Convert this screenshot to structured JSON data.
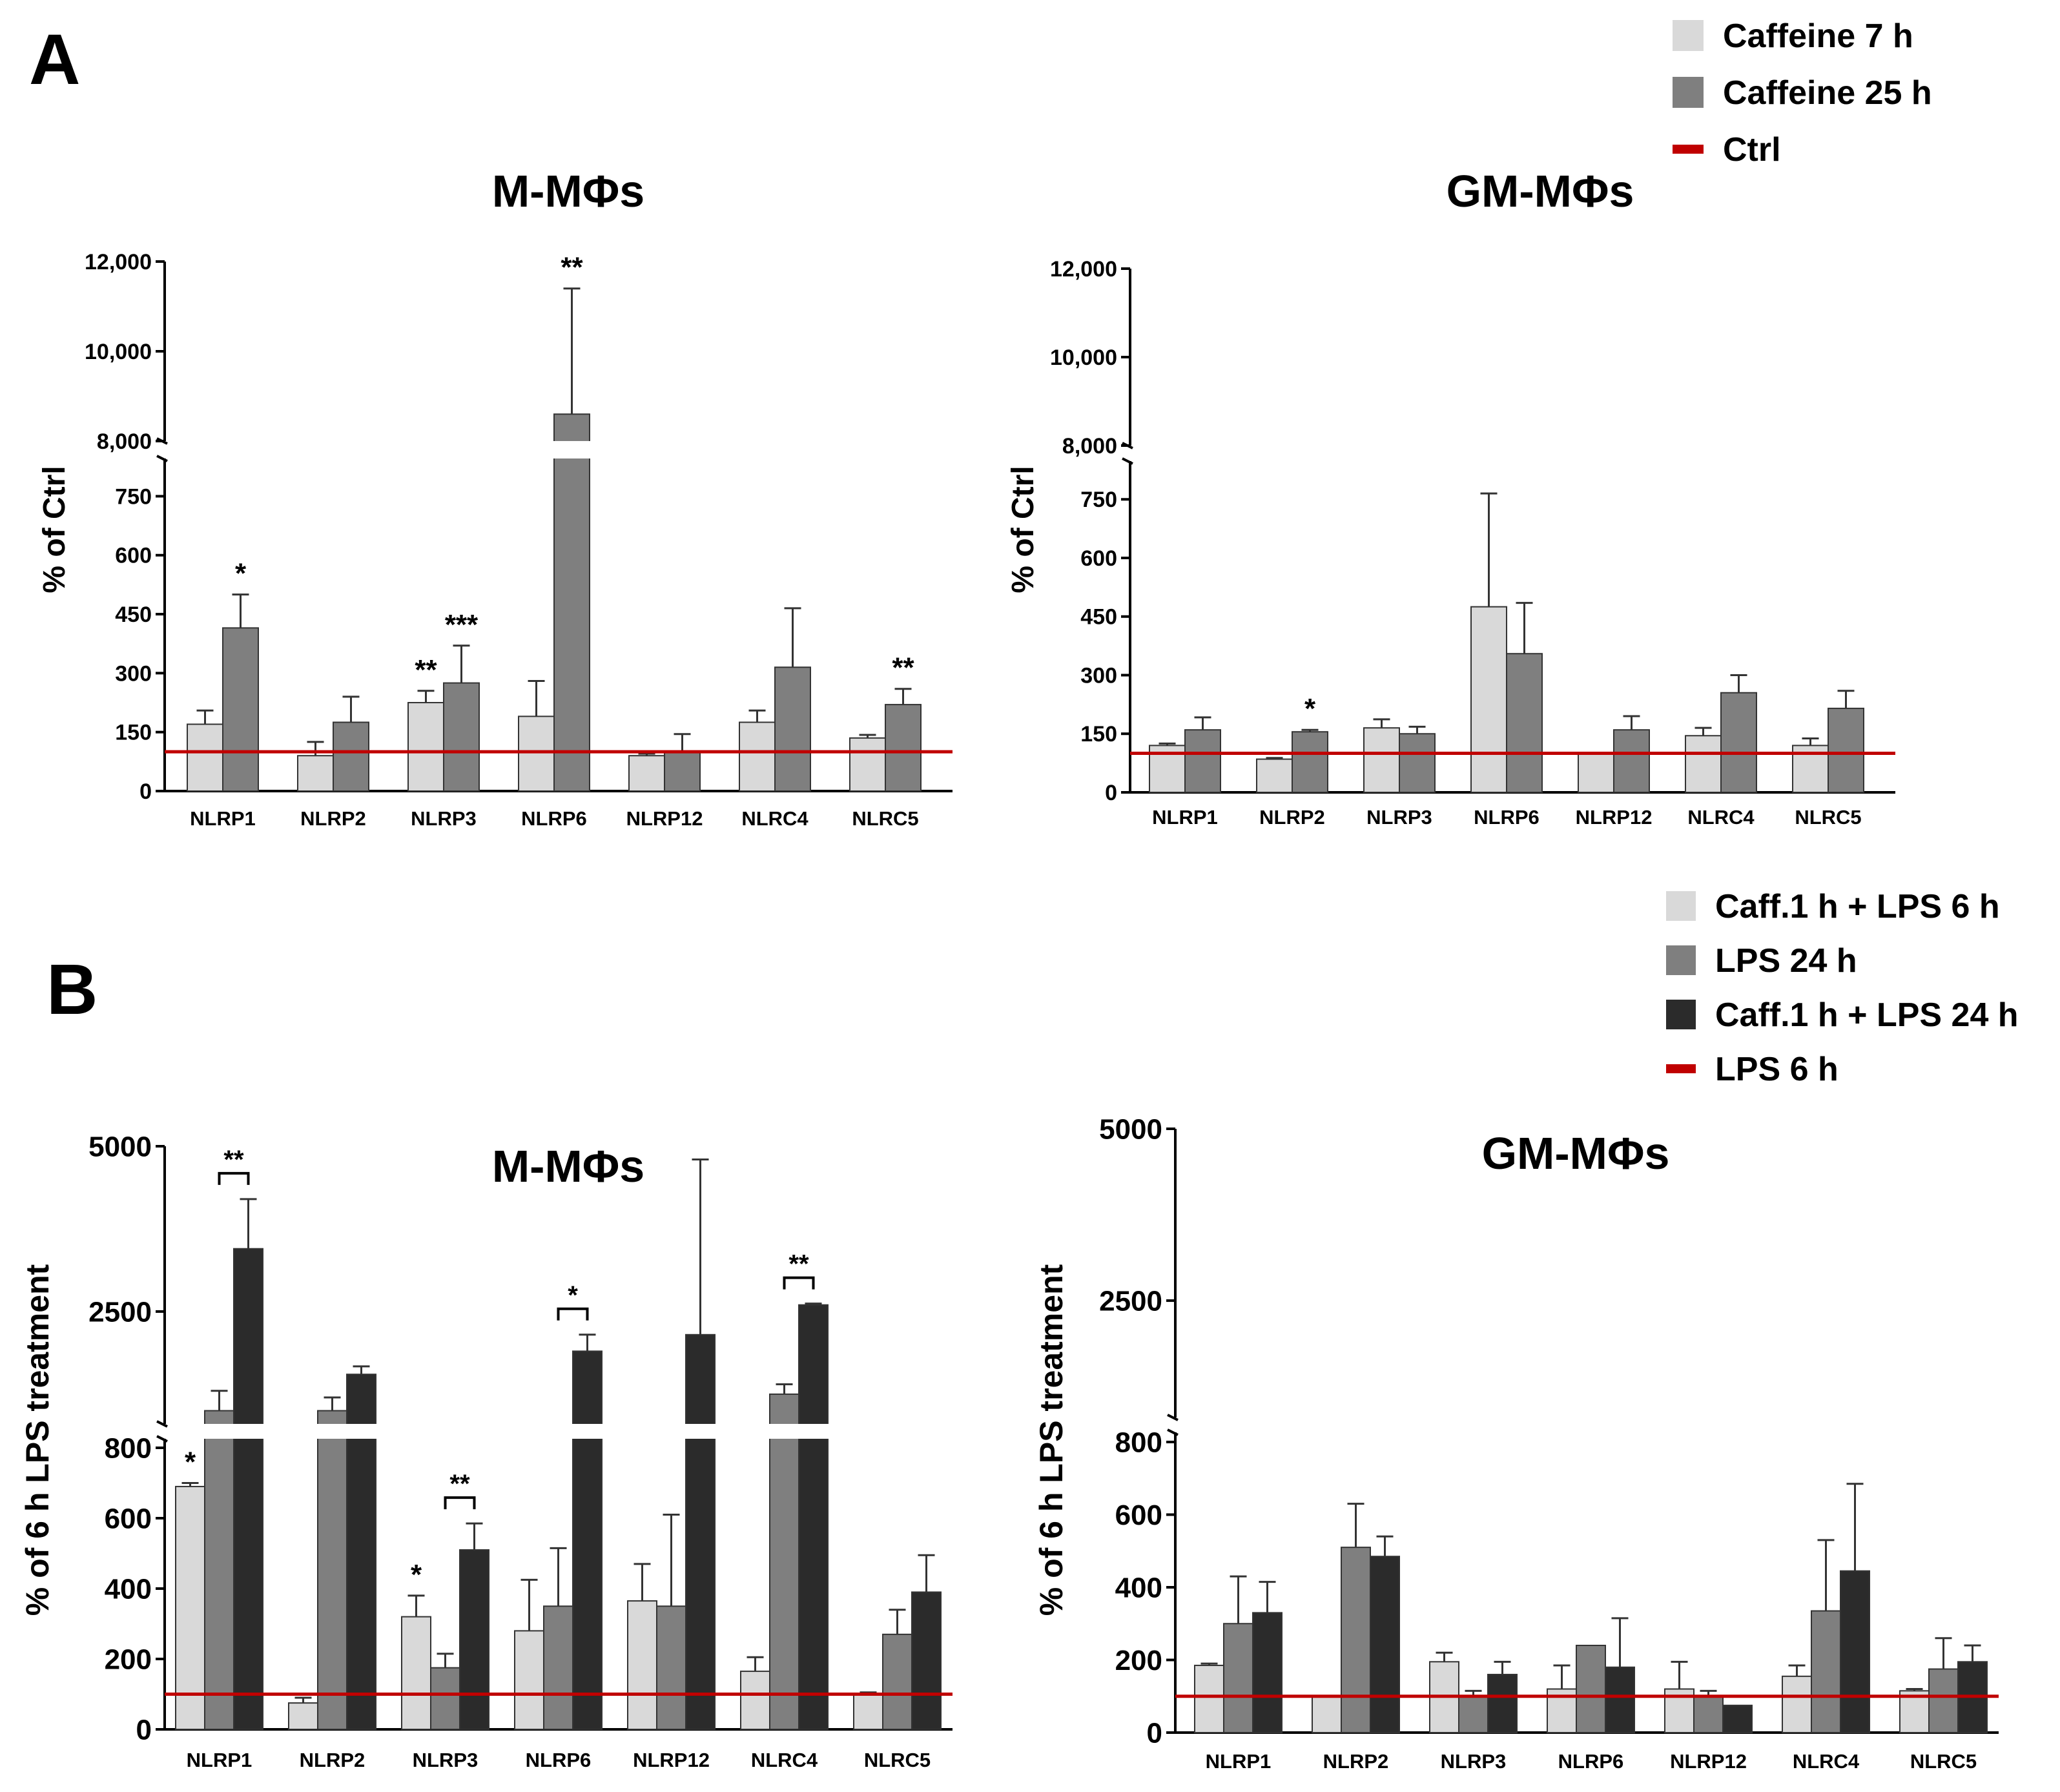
{
  "figure": {
    "panel_a_letter": "A",
    "panel_b_letter": "B",
    "legend_a": [
      {
        "label": "Caffeine 7 h",
        "color": "#d9d9d9",
        "kind": "box"
      },
      {
        "label": "Caffeine 25 h",
        "color": "#7f7f7f",
        "kind": "box"
      },
      {
        "label": "Ctrl",
        "color": "#c00000",
        "kind": "line"
      }
    ],
    "legend_b": [
      {
        "label": "Caff.1 h + LPS 6 h",
        "color": "#d9d9d9",
        "kind": "box"
      },
      {
        "label": "LPS 24 h",
        "color": "#7f7f7f",
        "kind": "box"
      },
      {
        "label": "Caff.1 h + LPS 24 h",
        "color": "#2b2b2b",
        "kind": "box"
      },
      {
        "label": "LPS 6 h",
        "color": "#c00000",
        "kind": "line"
      }
    ]
  },
  "chart_data": [
    {
      "type": "bar",
      "title": "M-MΦs",
      "ylabel": "% of Ctrl",
      "categories": [
        "NLRP1",
        "NLRP2",
        "NLRP3",
        "NLRP6",
        "NLRP12",
        "NLRC4",
        "NLRC5"
      ],
      "series": [
        {
          "name": "Caffeine 7 h",
          "color": "#d9d9d9",
          "values": [
            170,
            90,
            225,
            190,
            90,
            175,
            135
          ],
          "errors": [
            35,
            35,
            30,
            90,
            5,
            30,
            8
          ]
        },
        {
          "name": "Caffeine 25 h",
          "color": "#7f7f7f",
          "values": [
            415,
            175,
            275,
            8600,
            100,
            315,
            220
          ],
          "errors": [
            85,
            65,
            95,
            2800,
            45,
            150,
            40
          ]
        }
      ],
      "reference_line": {
        "name": "Ctrl",
        "value": 100,
        "color": "#c00000"
      },
      "axis_break": {
        "lower_range": [
          0,
          800
        ],
        "upper_range": [
          8000,
          12000
        ]
      },
      "yticks_lower": [
        "0",
        "150",
        "300",
        "450",
        "600",
        "750"
      ],
      "yticks_upper": [
        "8,000",
        "10,000",
        "12,000"
      ],
      "significance": [
        {
          "category": "NLRP1",
          "series": 1,
          "text": "*"
        },
        {
          "category": "NLRP3",
          "series": 0,
          "text": "**"
        },
        {
          "category": "NLRP3",
          "series": 1,
          "text": "***"
        },
        {
          "category": "NLRP6",
          "series": 1,
          "text": "**"
        },
        {
          "category": "NLRC5",
          "series": 1,
          "text": "**"
        }
      ]
    },
    {
      "type": "bar",
      "title": "GM-MΦs",
      "ylabel": "% of Ctrl",
      "categories": [
        "NLRP1",
        "NLRP2",
        "NLRP3",
        "NLRP6",
        "NLRP12",
        "NLRC4",
        "NLRC5"
      ],
      "series": [
        {
          "name": "Caffeine 7 h",
          "color": "#d9d9d9",
          "values": [
            120,
            85,
            165,
            475,
            100,
            145,
            120
          ],
          "errors": [
            5,
            3,
            22,
            290,
            0,
            20,
            18
          ]
        },
        {
          "name": "Caffeine 25 h",
          "color": "#7f7f7f",
          "values": [
            160,
            155,
            150,
            355,
            160,
            255,
            215
          ],
          "errors": [
            32,
            5,
            18,
            130,
            35,
            45,
            45
          ]
        }
      ],
      "reference_line": {
        "name": "Ctrl",
        "value": 100,
        "color": "#c00000"
      },
      "axis_break": {
        "lower_range": [
          0,
          800
        ],
        "upper_range": [
          8000,
          12000
        ]
      },
      "yticks_lower": [
        "0",
        "150",
        "300",
        "450",
        "600",
        "750"
      ],
      "yticks_upper": [
        "8,000",
        "10,000",
        "12,000"
      ],
      "significance": [
        {
          "category": "NLRP2",
          "series": 1,
          "text": "*"
        }
      ]
    },
    {
      "type": "bar",
      "title": "M-MΦs",
      "ylabel": "% of 6 h LPS treatment",
      "categories": [
        "NLRP1",
        "NLRP2",
        "NLRP3",
        "NLRP6",
        "NLRP12",
        "NLRC4",
        "NLRC5"
      ],
      "series": [
        {
          "name": "Caff.1 h + LPS 6 h",
          "color": "#d9d9d9",
          "values": [
            690,
            75,
            320,
            280,
            365,
            165,
            100
          ],
          "errors": [
            10,
            15,
            60,
            145,
            105,
            40,
            5
          ]
        },
        {
          "name": "LPS 24 h",
          "color": "#7f7f7f",
          "values": [
            1000,
            1000,
            175,
            350,
            350,
            1250,
            270
          ],
          "errors": [
            300,
            200,
            40,
            165,
            260,
            150,
            70
          ]
        },
        {
          "name": "Caff.1 h + LPS 24 h",
          "color": "#2b2b2b",
          "values": [
            3450,
            1550,
            510,
            1900,
            2150,
            2600,
            390
          ],
          "errors": [
            750,
            120,
            75,
            250,
            2650,
            20,
            105
          ]
        }
      ],
      "reference_line": {
        "name": "LPS 6 h",
        "value": 100,
        "color": "#c00000"
      },
      "axis_break": {
        "lower_range": [
          0,
          800
        ],
        "upper_range": [
          800,
          5000
        ]
      },
      "yticks_lower": [
        "0",
        "200",
        "400",
        "600",
        "800"
      ],
      "yticks_upper": [
        "2500",
        "5000"
      ],
      "significance": [
        {
          "category": "NLRP1",
          "series": 0,
          "text": "*"
        },
        {
          "category": "NLRP1",
          "bracket": [
            1,
            2
          ],
          "text": "**"
        },
        {
          "category": "NLRP3",
          "series": 0,
          "text": "*"
        },
        {
          "category": "NLRP3",
          "bracket": [
            1,
            2
          ],
          "text": "**"
        },
        {
          "category": "NLRP6",
          "bracket": [
            1,
            2
          ],
          "text": "*"
        },
        {
          "category": "NLRC4",
          "bracket": [
            1,
            2
          ],
          "text": "**"
        }
      ]
    },
    {
      "type": "bar",
      "title": "GM-MΦs",
      "ylabel": "% of 6 h LPS treatment",
      "categories": [
        "NLRP1",
        "NLRP2",
        "NLRP3",
        "NLRP6",
        "NLRP12",
        "NLRC4",
        "NLRC5"
      ],
      "series": [
        {
          "name": "Caff.1 h + LPS 6 h",
          "color": "#d9d9d9",
          "values": [
            185,
            100,
            195,
            120,
            120,
            155,
            115
          ],
          "errors": [
            5,
            0,
            25,
            65,
            75,
            30,
            5
          ]
        },
        {
          "name": "LPS 24 h",
          "color": "#7f7f7f",
          "values": [
            300,
            510,
            100,
            240,
            100,
            335,
            175
          ],
          "errors": [
            130,
            120,
            15,
            0,
            15,
            195,
            85
          ]
        },
        {
          "name": "Caff.1 h + LPS 24 h",
          "color": "#2b2b2b",
          "values": [
            330,
            485,
            160,
            180,
            75,
            445,
            195
          ],
          "errors": [
            85,
            55,
            35,
            135,
            0,
            240,
            45
          ]
        }
      ],
      "reference_line": {
        "name": "LPS 6 h",
        "value": 100,
        "color": "#c00000"
      },
      "axis_break": {
        "lower_range": [
          0,
          800
        ],
        "upper_range": [
          800,
          5000
        ]
      },
      "yticks_lower": [
        "0",
        "200",
        "400",
        "600",
        "800"
      ],
      "yticks_upper": [
        "2500",
        "5000"
      ],
      "significance": []
    }
  ]
}
